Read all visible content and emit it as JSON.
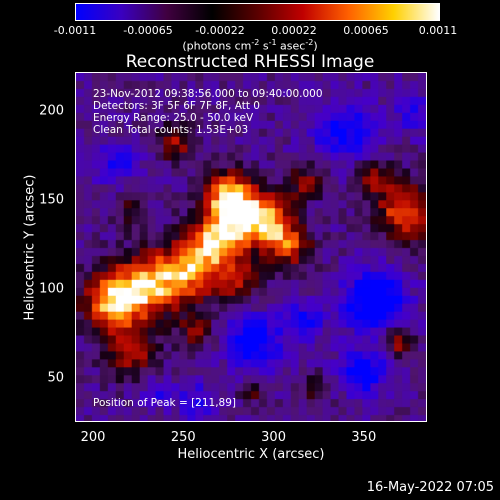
{
  "colorbar": {
    "ticks": [
      "-0.0011",
      "-0.00065",
      "-0.00022",
      "0.00022",
      "0.00065",
      "0.0011"
    ],
    "units": "(photons cm",
    "units_exp1": "-2",
    "units_mid": " s",
    "units_exp2": "-1",
    "units_mid2": " asec",
    "units_exp3": "-2",
    "units_end": ")",
    "colors": [
      "#0000ff",
      "#3a00c0",
      "#400040",
      "#000000",
      "#5a0000",
      "#c00000",
      "#ff6000",
      "#ffd000",
      "#ffffff"
    ]
  },
  "info": {
    "time": "23-Nov-2012 09:38:56.000 to 09:40:00.000",
    "detectors": "Detectors: 3F 5F 6F 7F 8F, Att 0",
    "energy": "Energy Range: 25.0 - 50.0 keV",
    "clean": "Clean     Total counts: 1.53E+03",
    "peak": "Position of Peak = [211,89]"
  },
  "datestamp": "16-May-2022 07:05",
  "chart_data": {
    "type": "heatmap",
    "title": "Reconstructed RHESSI Image",
    "xlabel": "Heliocentric X (arcsec)",
    "ylabel": "Heliocentric Y (arcsec)",
    "xlim": [
      190,
      385
    ],
    "ylim": [
      25,
      222
    ],
    "xticks": [
      200,
      250,
      300,
      350
    ],
    "yticks": [
      50,
      100,
      150,
      200
    ],
    "zlim": [
      -0.0011,
      0.0011
    ],
    "peak_position": [
      211,
      89
    ],
    "grid": false
  }
}
